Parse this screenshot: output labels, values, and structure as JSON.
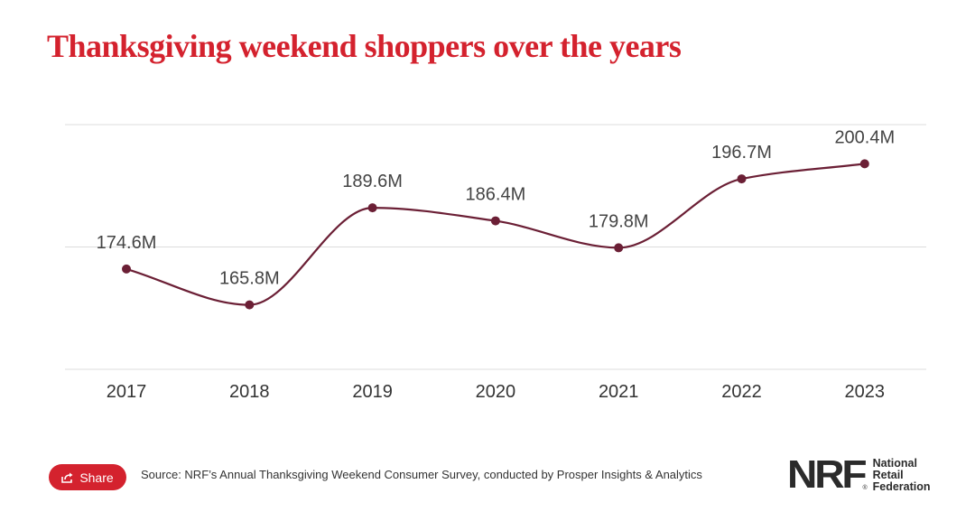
{
  "title": "Thanksgiving weekend shoppers over the years",
  "colors": {
    "title": "#d4222e",
    "line": "#6b1f35",
    "grid": "#dcdcdc",
    "share_bg": "#d4222e"
  },
  "share": {
    "label": "Share",
    "icon": "share-icon"
  },
  "source": "Source: NRF’s Annual Thanksgiving Weekend Consumer Survey, conducted by Prosper Insights & Analytics",
  "logo": {
    "mark": "NRF",
    "reg": "®",
    "lines": [
      "National",
      "Retail",
      "Federation"
    ]
  },
  "chart_data": {
    "type": "line",
    "title": "Thanksgiving weekend shoppers over the years",
    "categories": [
      "2017",
      "2018",
      "2019",
      "2020",
      "2021",
      "2022",
      "2023"
    ],
    "series": [
      {
        "values": [
          174.6,
          165.8,
          189.6,
          186.4,
          179.8,
          196.7,
          200.4
        ],
        "labels": [
          "174.6M",
          "165.8M",
          "189.6M",
          "186.4M",
          "179.8M",
          "196.7M",
          "200.4M"
        ]
      }
    ],
    "unit": "M",
    "ylim": [
      150,
      210
    ],
    "gridlines": [
      150,
      180,
      210
    ],
    "grid": true,
    "legend": "none"
  }
}
